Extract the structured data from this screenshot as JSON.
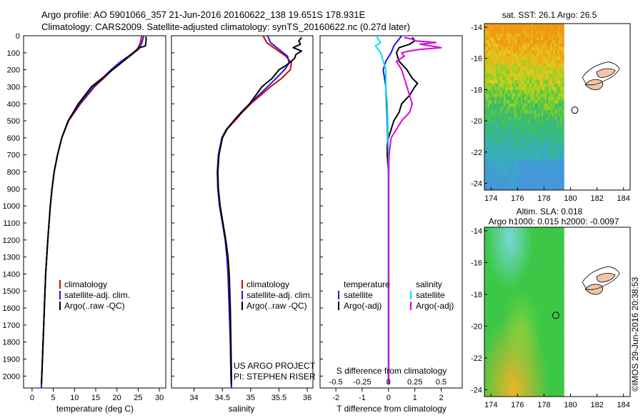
{
  "header": {
    "line1": "Argo profile: AO 5901066_357 21-Jun-2016 20160622_138 19.651S 178.931E",
    "line2": "Climatology: CARS2009. Satellite-adjusted climatology: synTS_20160622.nc (0.27d later)"
  },
  "colors": {
    "clim": "#e00000",
    "sat": "#1a1ad8",
    "argo": "#000000",
    "sat_s": "#00e5ee",
    "argo_s": "#e000e0"
  },
  "depth_axis": {
    "range": [
      0,
      2070
    ],
    "ticks": [
      0,
      100,
      200,
      300,
      400,
      500,
      600,
      700,
      800,
      900,
      1000,
      1100,
      1200,
      1300,
      1400,
      1500,
      1600,
      1700,
      1800,
      1900,
      2000
    ]
  },
  "chart_data": [
    {
      "type": "line",
      "title": "temperature profile",
      "xlabel": "temperature (deg C)",
      "xlim": [
        -2,
        31.5
      ],
      "xticks": [
        0,
        5,
        10,
        15,
        20,
        25,
        30
      ],
      "legend": [
        "climatology",
        "satellite-adj. clim.",
        "Argo(..raw -QC)"
      ],
      "series": [
        {
          "name": "climatology",
          "color": "clim",
          "depth": [
            0,
            20,
            40,
            60,
            80,
            100,
            150,
            200,
            250,
            300,
            400,
            500,
            600,
            700,
            800,
            900,
            1000,
            1200,
            1400,
            1600,
            1800,
            2000,
            2070
          ],
          "values": [
            25.8,
            25.7,
            25.5,
            25.2,
            24.7,
            23.8,
            21.2,
            18.9,
            16.9,
            14.7,
            11.4,
            8.6,
            7.0,
            6.0,
            5.2,
            4.7,
            4.3,
            3.7,
            3.2,
            2.9,
            2.6,
            2.3,
            2.2
          ]
        },
        {
          "name": "satellite-adj. clim.",
          "color": "sat",
          "depth": [
            0,
            20,
            40,
            60,
            80,
            100,
            150,
            200,
            250,
            300,
            400,
            500,
            600,
            700,
            800,
            900,
            1000,
            1200,
            1400,
            1600,
            1800,
            2000,
            2070
          ],
          "values": [
            26.3,
            26.1,
            25.9,
            25.5,
            24.9,
            23.9,
            21.0,
            18.6,
            16.6,
            14.5,
            11.2,
            8.5,
            7.0,
            6.0,
            5.2,
            4.7,
            4.3,
            3.7,
            3.2,
            2.9,
            2.6,
            2.3,
            2.2
          ]
        },
        {
          "name": "Argo(..raw -QC)",
          "color": "argo",
          "depth": [
            5,
            20,
            40,
            60,
            70,
            80,
            100,
            150,
            200,
            250,
            300,
            400,
            500,
            600,
            700,
            800,
            900,
            1000,
            1200,
            1400,
            1600,
            1800,
            2000,
            2050
          ],
          "values": [
            26.8,
            26.9,
            26.8,
            26.7,
            25.4,
            25.0,
            24.0,
            21.5,
            19.0,
            16.5,
            14.0,
            10.9,
            8.5,
            7.0,
            6.0,
            5.2,
            4.7,
            4.3,
            3.7,
            3.2,
            2.9,
            2.6,
            2.3,
            2.2
          ]
        }
      ]
    },
    {
      "type": "line",
      "title": "salinity profile",
      "xlabel": "salinity",
      "xlim": [
        33.6,
        36.1
      ],
      "xticks": [
        34,
        34.5,
        35,
        35.5,
        36
      ],
      "legend": [
        "climatology",
        "satellite-adj. clim.",
        "Argo(..raw -QC)"
      ],
      "annotation": [
        "US ARGO PROJECT",
        "PI: STEPHEN RISER"
      ],
      "series": [
        {
          "name": "climatology",
          "color": "clim",
          "depth": [
            0,
            40,
            80,
            120,
            160,
            200,
            250,
            300,
            400,
            450,
            500,
            550,
            600,
            700,
            800,
            900,
            1000,
            1100,
            1200,
            1300,
            1400,
            1600,
            1800,
            2000,
            2070
          ],
          "values": [
            35.22,
            35.28,
            35.45,
            35.62,
            35.72,
            35.7,
            35.55,
            35.35,
            35.0,
            34.85,
            34.72,
            34.58,
            34.5,
            34.43,
            34.41,
            34.42,
            34.45,
            34.5,
            34.55,
            34.58,
            34.6,
            34.62,
            34.64,
            34.65,
            34.66
          ]
        },
        {
          "name": "satellite-adj. clim.",
          "color": "sat",
          "depth": [
            0,
            40,
            80,
            120,
            160,
            200,
            250,
            300,
            400,
            450,
            500,
            550,
            600,
            700,
            800,
            900,
            1000,
            1100,
            1200,
            1300,
            1400,
            1600,
            1800,
            2000,
            2070
          ],
          "values": [
            35.3,
            35.35,
            35.5,
            35.65,
            35.68,
            35.6,
            35.45,
            35.3,
            34.98,
            34.83,
            34.7,
            34.57,
            34.49,
            34.43,
            34.41,
            34.42,
            34.45,
            34.5,
            34.55,
            34.58,
            34.6,
            34.62,
            34.64,
            34.65,
            34.66
          ]
        },
        {
          "name": "Argo(..raw -QC)",
          "color": "argo",
          "depth": [
            10,
            30,
            50,
            70,
            90,
            110,
            130,
            150,
            180,
            200,
            250,
            300,
            400,
            500,
            550,
            600,
            700,
            800,
            900,
            1000,
            1100,
            1200,
            1300,
            1400,
            1500,
            1600,
            1800,
            2000,
            2050
          ],
          "values": [
            35.9,
            35.85,
            35.88,
            35.75,
            35.9,
            35.8,
            35.78,
            35.72,
            35.6,
            35.5,
            35.38,
            35.2,
            34.98,
            34.7,
            34.58,
            34.5,
            34.44,
            34.42,
            34.43,
            34.46,
            34.51,
            34.56,
            34.6,
            34.62,
            34.63,
            34.64,
            34.65,
            34.66,
            34.66
          ]
        }
      ]
    },
    {
      "type": "line",
      "title": "difference from climatology",
      "xlabel": "T difference from climatology",
      "xlabel_top": "S difference from climatology",
      "xlim": [
        -2.6,
        2.8
      ],
      "xticks": [
        -2,
        -1,
        0,
        1,
        2
      ],
      "xticks_top": [
        -0.5,
        -0.25,
        0,
        0.25,
        0.5
      ],
      "legend_t": {
        "heading": "temperature",
        "items": [
          "satellite",
          "Argo(-adj)"
        ]
      },
      "legend_s": {
        "heading": "salinity",
        "items": [
          "satellite",
          "Argo(-adj)"
        ]
      },
      "series": [
        {
          "name": "T satellite",
          "color": "sat",
          "depth": [
            0,
            20,
            40,
            60,
            80,
            100,
            150,
            200,
            300,
            500,
            800,
            1000,
            1500,
            2000,
            2050
          ],
          "values": [
            0.5,
            0.4,
            0.3,
            0.2,
            0.15,
            0.1,
            -0.1,
            -0.2,
            -0.1,
            -0.05,
            0,
            0,
            0,
            0,
            0
          ]
        },
        {
          "name": "T Argo(-adj)",
          "color": "argo",
          "depth": [
            10,
            30,
            50,
            70,
            100,
            150,
            200,
            250,
            280,
            300,
            350,
            400,
            450,
            500,
            550,
            600,
            650,
            700,
            800,
            1000,
            1200,
            1500,
            1800,
            2000,
            2050
          ],
          "values": [
            0.9,
            1.0,
            0.8,
            0.4,
            0.3,
            0.4,
            0.7,
            0.9,
            1.1,
            1.0,
            0.8,
            0.5,
            0.4,
            0.2,
            0.1,
            0.0,
            -0.05,
            -0.05,
            0,
            0,
            0,
            0,
            0,
            0,
            0
          ]
        },
        {
          "name": "S satellite",
          "color": "sat_s",
          "depth": [
            0,
            20,
            40,
            60,
            80,
            100,
            150,
            200,
            300,
            400,
            500,
            700,
            1000,
            1500,
            2000,
            2050
          ],
          "values": [
            -0.45,
            -0.4,
            -0.3,
            -0.5,
            -0.4,
            -0.3,
            -0.2,
            -0.1,
            -0.1,
            -0.05,
            -0.03,
            0,
            0,
            0,
            0,
            0
          ]
        },
        {
          "name": "S Argo(-adj)",
          "color": "argo_s",
          "depth": [
            10,
            20,
            30,
            40,
            50,
            60,
            70,
            80,
            90,
            100,
            120,
            150,
            200,
            250,
            300,
            350,
            400,
            450,
            500,
            550,
            600,
            700,
            800,
            1000,
            1200,
            1500,
            1800,
            2000,
            2050
          ],
          "values": [
            0.6,
            0.9,
            1.0,
            1.8,
            1.2,
            1.6,
            2.0,
            1.2,
            0.8,
            0.5,
            0.6,
            0.3,
            0.5,
            0.6,
            0.7,
            0.8,
            0.9,
            0.8,
            0.5,
            0.3,
            0.1,
            0.02,
            0.01,
            0.01,
            0.01,
            0.01,
            0.01,
            0.01,
            0.01
          ]
        }
      ]
    }
  ],
  "maps": {
    "sst": {
      "title": "sat. SST: 26.1  Argo: 26.5",
      "yticks": [
        "-14",
        "-16",
        "-18",
        "-20",
        "-22",
        "-24"
      ],
      "xticks": [
        "174",
        "176",
        "178",
        "180",
        "182",
        "184"
      ]
    },
    "sla": {
      "title1": "Altim. SLA: 0.018",
      "title2": "Argo h1000: 0.015 h2000: -0.0097",
      "yticks": [
        "-14",
        "-16",
        "-18",
        "-20",
        "-22",
        "-24"
      ],
      "xticks": [
        "174",
        "176",
        "178",
        "180",
        "182",
        "184"
      ]
    }
  },
  "watermark": "©IMOS 29-Jun-2016 20:38:53"
}
